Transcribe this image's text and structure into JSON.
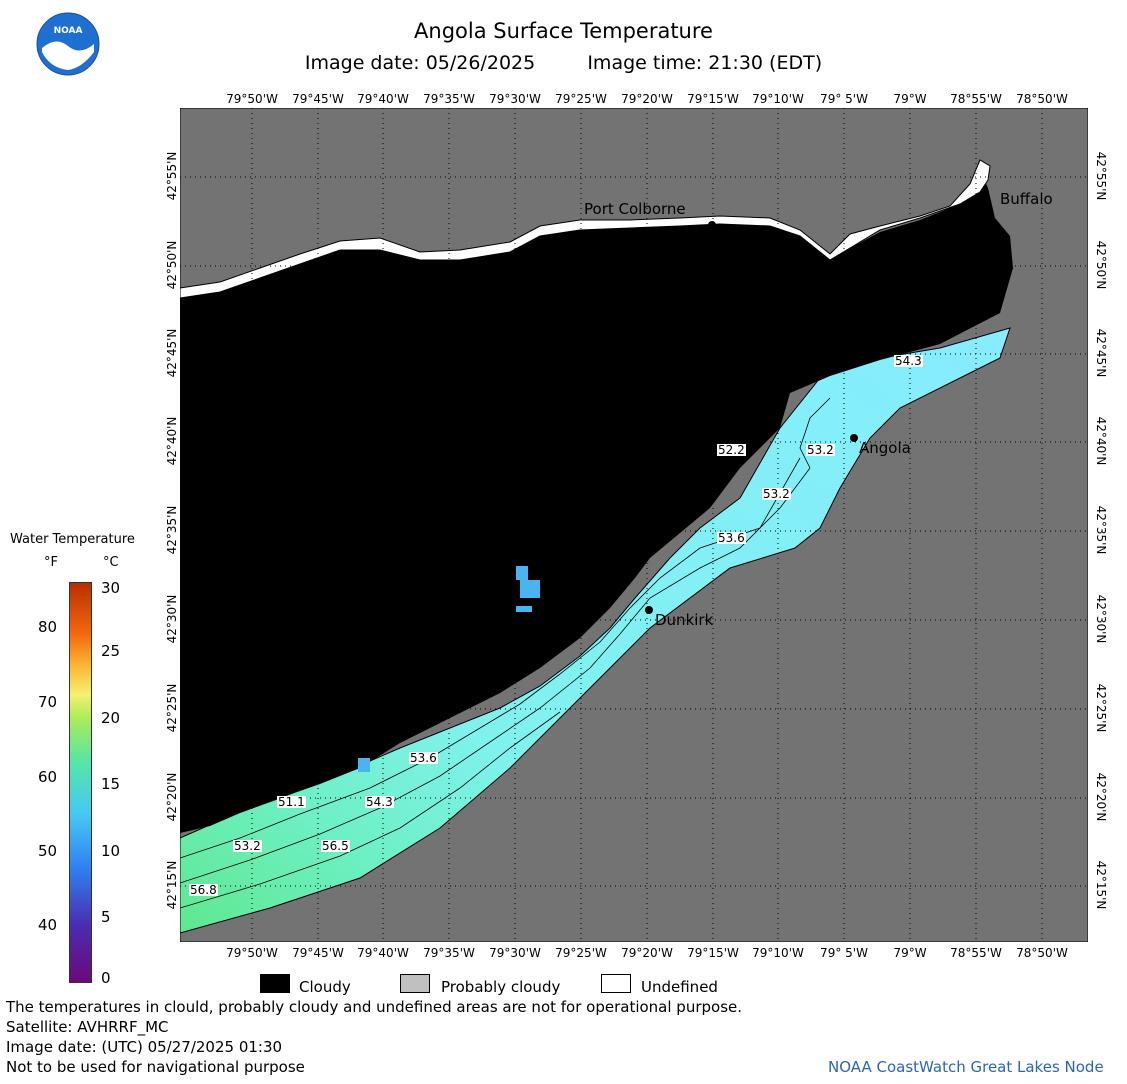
{
  "header": {
    "title": "Angola Surface Temperature",
    "image_date": "Image date: 05/26/2025",
    "image_time": "Image time: 21:30 (EDT)"
  },
  "logo": {
    "text": "NOAA"
  },
  "map": {
    "lon_labels": [
      "79°50'W",
      "79°45'W",
      "79°40'W",
      "79°35'W",
      "79°30'W",
      "79°25'W",
      "79°20'W",
      "79°15'W",
      "79°10'W",
      "79° 5'W",
      "79°W",
      "78°55'W",
      "78°50'W"
    ],
    "lat_labels": [
      "42°55'N",
      "42°50'N",
      "42°45'N",
      "42°40'N",
      "42°35'N",
      "42°30'N",
      "42°25'N",
      "42°20'N",
      "42°15'N"
    ],
    "cities": [
      "Port Colborne",
      "Buffalo",
      "Angola",
      "Dunkirk"
    ],
    "isotherms": [
      "54.3",
      "52.2",
      "53.2",
      "53.2",
      "53.6",
      "53.6",
      "51.1",
      "54.3",
      "53.2",
      "56.5",
      "56.8"
    ],
    "colors": {
      "land": "#737373",
      "cloud": "#000000",
      "water_cool": "#7feeff",
      "water_warm": "#66e8a8"
    }
  },
  "colorbar": {
    "title": "Water Temperature",
    "unit_f": "°F",
    "unit_c": "°C",
    "f_ticks": [
      "80",
      "70",
      "60",
      "50",
      "40"
    ],
    "c_ticks": [
      "30",
      "25",
      "20",
      "15",
      "10",
      "5",
      "0"
    ]
  },
  "legend": {
    "cloudy": "Cloudy",
    "probably_cloudy": "Probably cloudy",
    "undefined": "Undefined"
  },
  "footer": {
    "disclaimer": "The temperatures in clould, probably cloudy and undefined areas are not for operational purpose.",
    "satellite": "Satellite: AVHRRF_MC",
    "utc_date": "Image date: (UTC) 05/27/2025  01:30",
    "navigation": "Not to be used for navigational purpose",
    "credit": "NOAA CoastWatch Great Lakes Node"
  }
}
